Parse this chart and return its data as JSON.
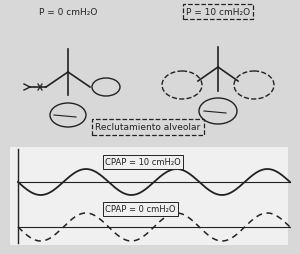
{
  "bg_color": "#d8d8d8",
  "panel_color": "#f0f0f0",
  "label_left": "P = 0 cmH₂O",
  "label_right": "P = 10 cmH₂O",
  "reclutamiento": "Reclutamiento alveolar",
  "cpap10_label": "CPAP = 10 cmH₂O",
  "cpap0_label": "CPAP = 0 cmH₂O",
  "line_color": "#222222",
  "wave_freq": 3.0,
  "amp_solid": 0.18,
  "amp_dashed": 0.22
}
